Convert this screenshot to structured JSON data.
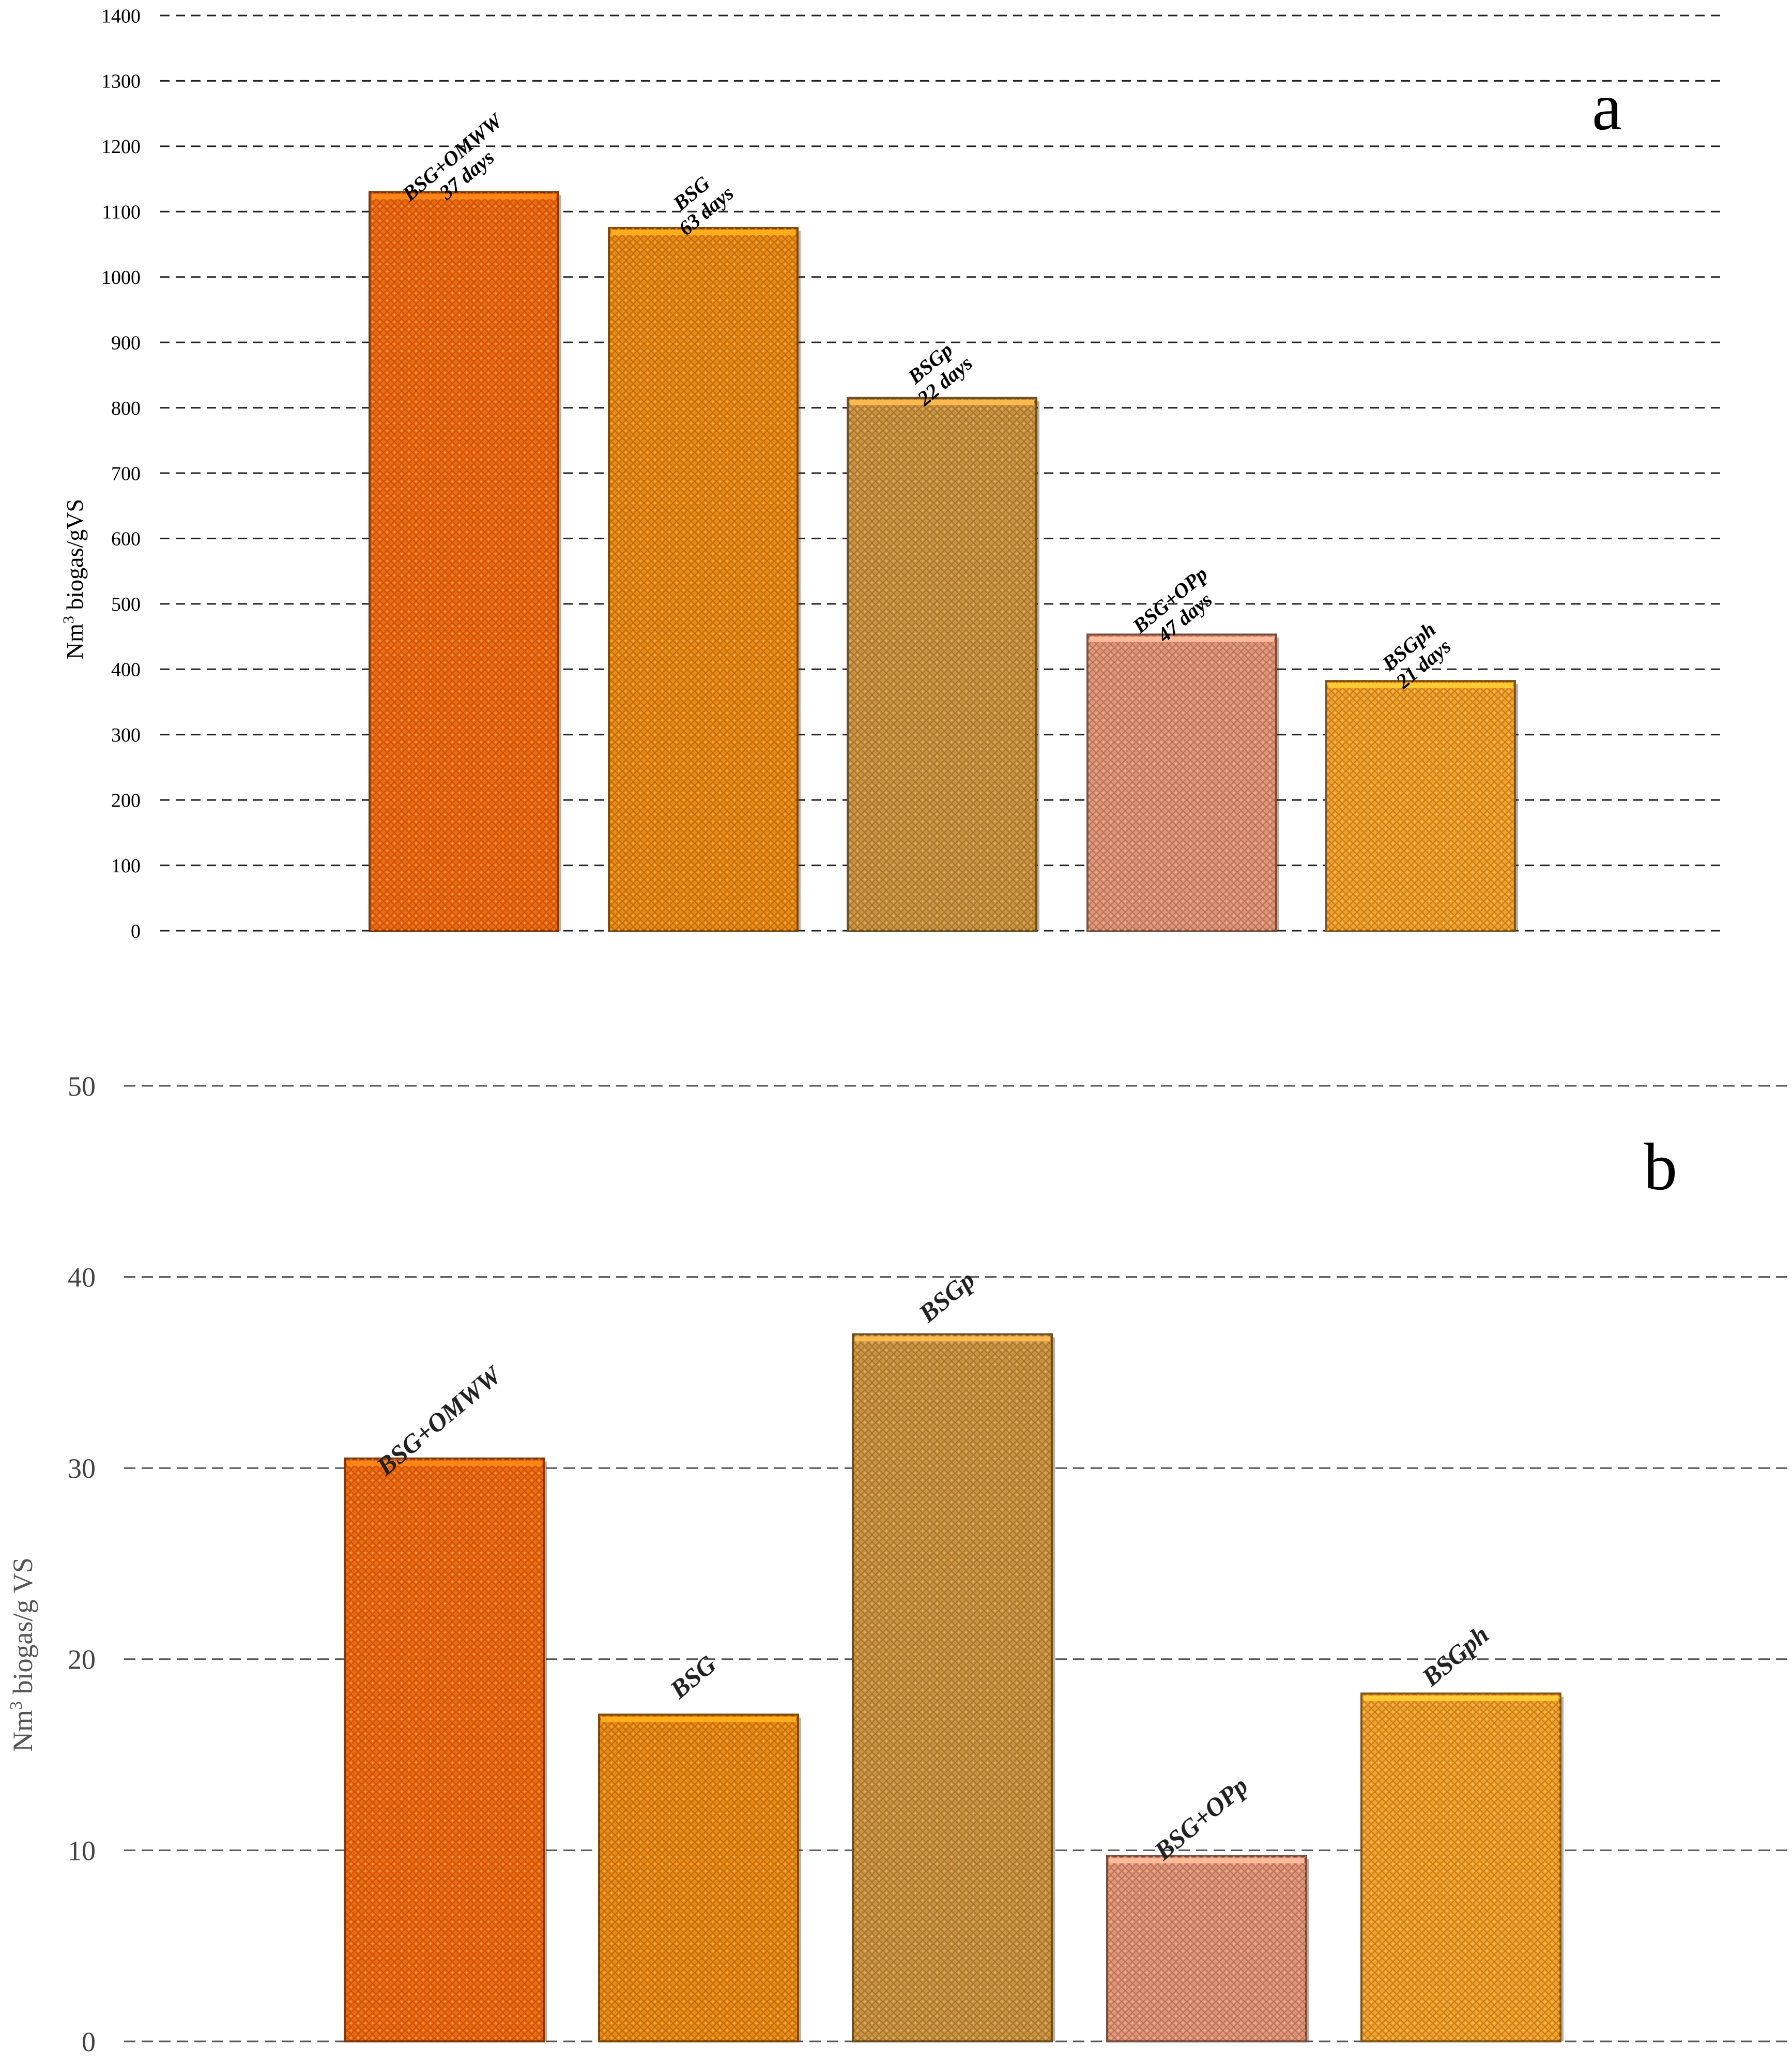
{
  "chart_data": [
    {
      "id": "a",
      "type": "bar",
      "panel_label": "a",
      "ylabel": "Nm³ biogas/gVS",
      "ylabel_main": "Nm",
      "ylabel_sup": "3",
      "ylabel_rest": " biogas/gVS",
      "ylim": [
        0,
        1400
      ],
      "yticks": [
        0,
        100,
        200,
        300,
        400,
        500,
        600,
        700,
        800,
        900,
        1000,
        1100,
        1200,
        1300,
        1400
      ],
      "grid": true,
      "categories": [
        "BSG+OMWW",
        "BSG",
        "BSGp",
        "BSG+OPp",
        "BSGph"
      ],
      "values": [
        1130,
        1075,
        815,
        453,
        382
      ],
      "durations": [
        "37 days",
        "63 days",
        "22 days",
        "47 days",
        "21 days"
      ],
      "colors": [
        "#f06a10",
        "#e98a14",
        "#c99440",
        "#e0957a",
        "#f2a22a"
      ]
    },
    {
      "id": "b",
      "type": "bar",
      "panel_label": "b",
      "ylabel": "Nm³ biogas/g VS",
      "ylabel_main": "Nm",
      "ylabel_sup": "3",
      "ylabel_rest": " biogas/g VS",
      "ylim": [
        0,
        50
      ],
      "yticks": [
        0,
        10,
        20,
        30,
        40,
        50
      ],
      "grid": true,
      "categories": [
        "BSG+OMWW",
        "BSG",
        "BSGp",
        "BSG+OPp",
        "BSGph"
      ],
      "values": [
        30.5,
        17.1,
        37.0,
        9.7,
        18.2
      ],
      "colors": [
        "#f06a10",
        "#e98a14",
        "#c99440",
        "#e0957a",
        "#f2a22a"
      ]
    }
  ]
}
